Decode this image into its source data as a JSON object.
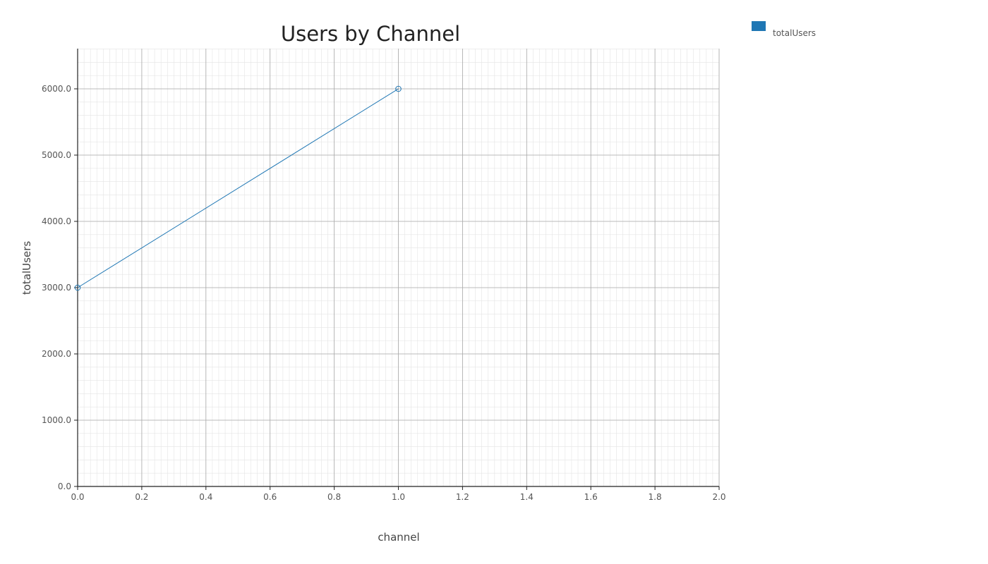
{
  "chart_data": {
    "type": "line",
    "title": "Users by Channel",
    "xlabel": "channel",
    "ylabel": "totalUsers",
    "xlim": [
      0,
      2
    ],
    "ylim": [
      0,
      6600
    ],
    "x_ticks": [
      "0.0",
      "0.2",
      "0.4",
      "0.6",
      "0.8",
      "1.0",
      "1.2",
      "1.4",
      "1.6",
      "1.8",
      "2.0"
    ],
    "y_ticks": [
      "0.0",
      "1000.0",
      "2000.0",
      "3000.0",
      "4000.0",
      "5000.0",
      "6000.0"
    ],
    "grid": true,
    "legend_position": "top-right",
    "series": [
      {
        "name": "totalUsers",
        "color": "#1f77b4",
        "x": [
          0,
          1
        ],
        "y": [
          3000,
          6000
        ]
      }
    ]
  }
}
